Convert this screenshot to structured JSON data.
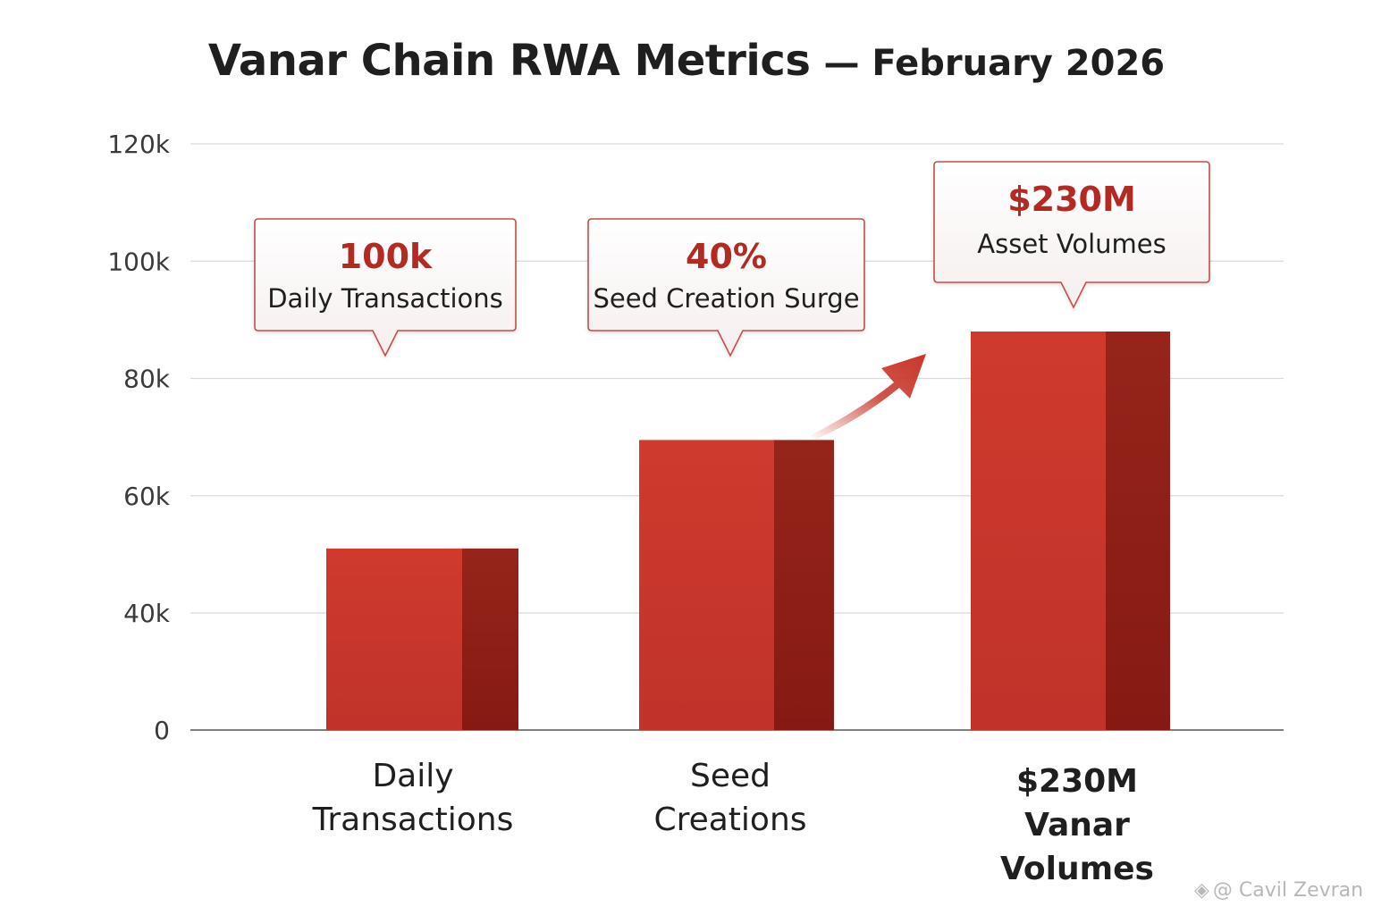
{
  "chart_data": {
    "type": "bar",
    "title": "Vanar Chain RWA Metrics",
    "subtitle": "— February 2026",
    "categories": [
      [
        "Daily",
        "Transactions"
      ],
      [
        "Seed",
        "Creations"
      ],
      [
        "$230M",
        "Vanar",
        "Volumes"
      ]
    ],
    "category_bold": [
      false,
      false,
      true
    ],
    "values": [
      51000,
      69500,
      88000
    ],
    "ylim": [
      0,
      120000
    ],
    "yticks": [
      0,
      40000,
      60000,
      80000,
      100000,
      120000
    ],
    "ytick_labels": [
      "0",
      "40k",
      "60k",
      "80k",
      "100k",
      "120k"
    ],
    "grid": true,
    "bar_color": "#c8372b",
    "bar_shade_color": "#8e1d15",
    "annotations": [
      {
        "value": "100k",
        "text": "Daily Transactions"
      },
      {
        "value": "40%",
        "text": "Seed Creation Surge"
      },
      {
        "value": "$230M",
        "text": "Asset Volumes"
      }
    ],
    "accent_color": "#b32a22"
  },
  "watermark": {
    "icon": "exchange-logo-icon",
    "text": "@ Cavil Zevran"
  }
}
